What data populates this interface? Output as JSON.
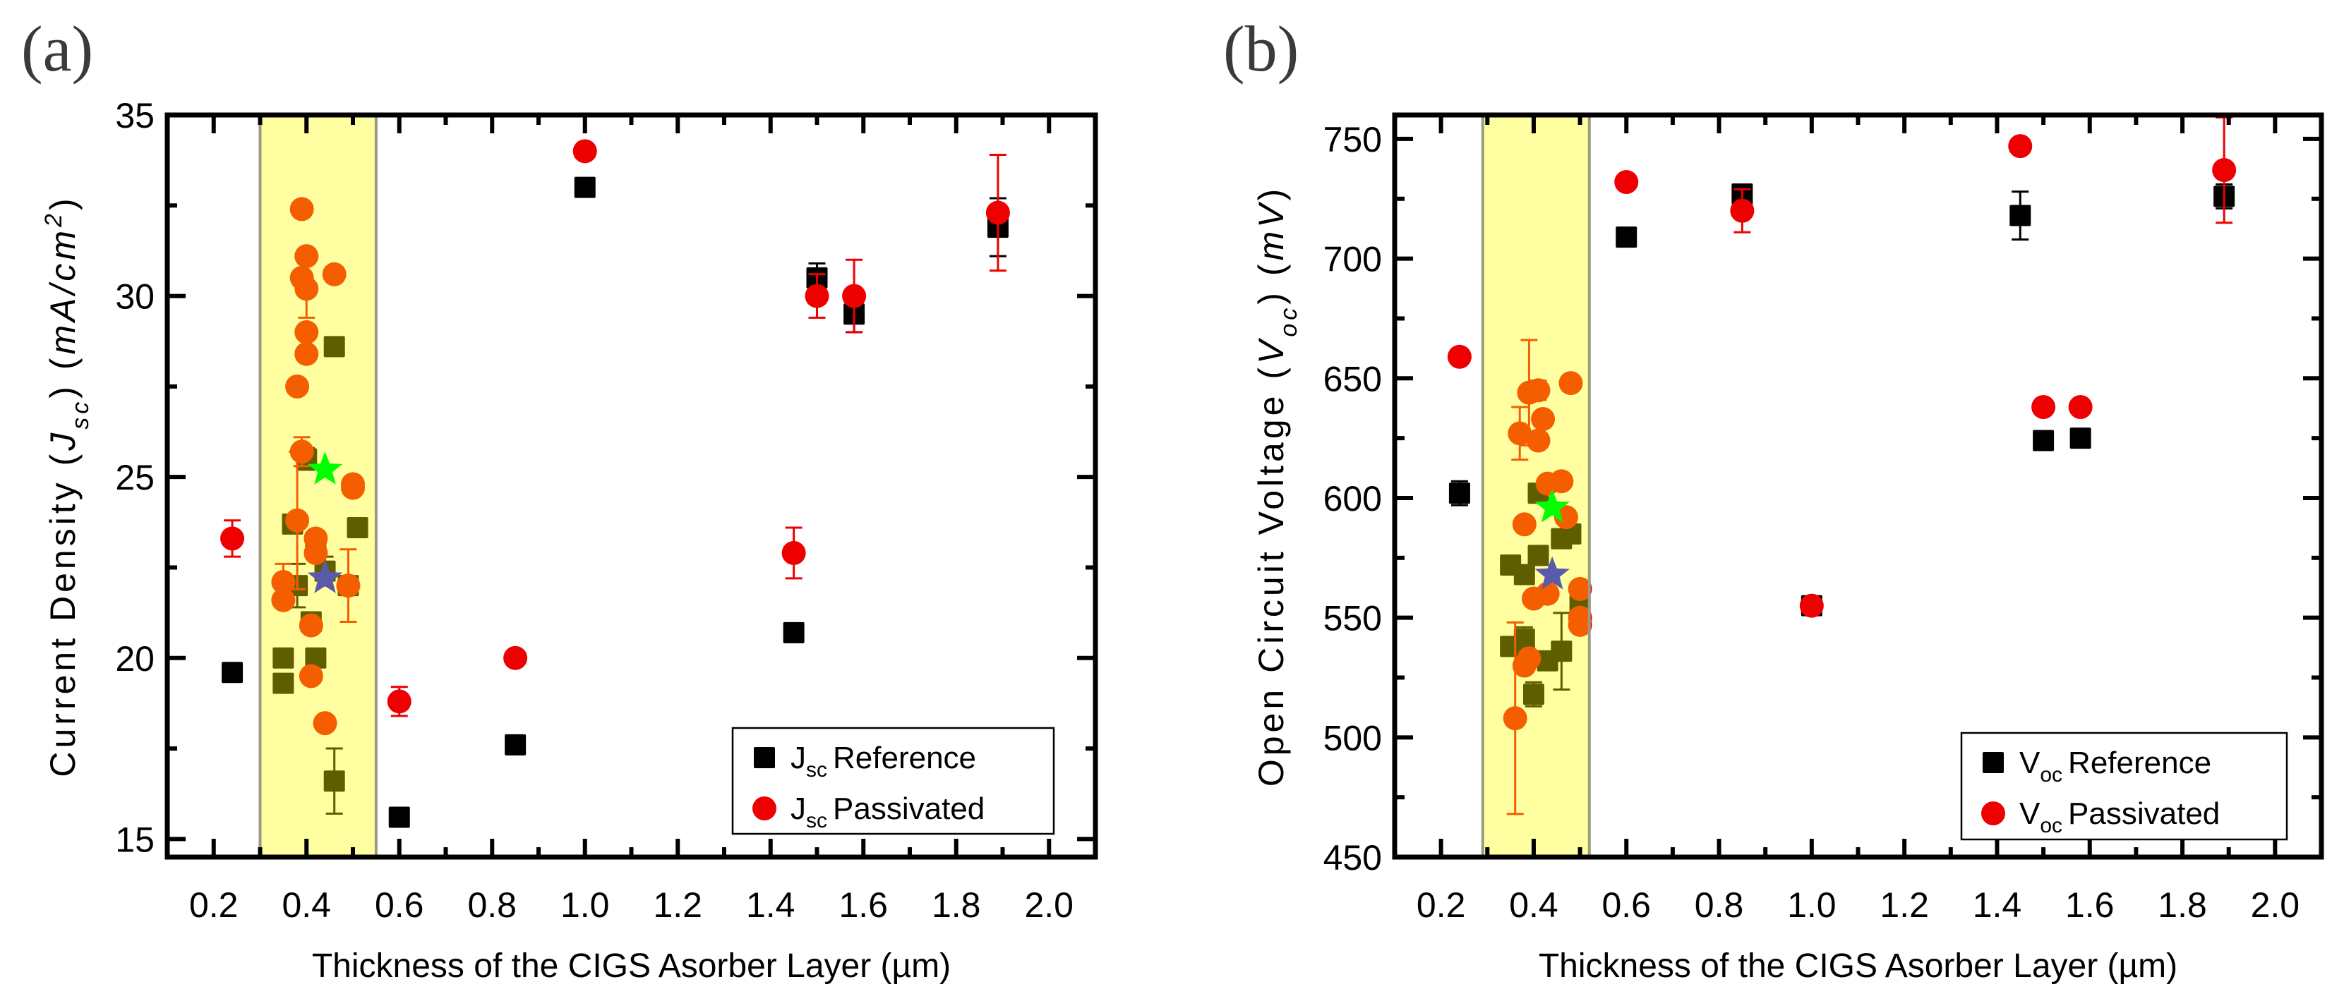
{
  "colors": {
    "reference": "#000000",
    "passivated": "#ee0000",
    "highlight": "#ffff00",
    "highlight_border": "#9a9a80",
    "star_green": "#00ff00",
    "star_blue": "#5a5aaa"
  },
  "chart_data": [
    {
      "type": "scatter",
      "panel_label": "(a)",
      "xlabel": "Thickness of the CIGS Asorber Layer (µm)",
      "ylabel_parts": [
        {
          "t": "Current Density (",
          "style": "normal"
        },
        {
          "t": "J",
          "style": "italic"
        },
        {
          "t": "sc",
          "style": "sub"
        },
        {
          "t": ") (",
          "style": "normal"
        },
        {
          "t": "mA/cm",
          "style": "italic"
        },
        {
          "t": "2",
          "style": "sup"
        },
        {
          "t": ")",
          "style": "normal"
        }
      ],
      "xlim": [
        0.1,
        2.1
      ],
      "ylim": [
        14.5,
        35
      ],
      "xticks": [
        0.2,
        0.4,
        0.6,
        0.8,
        1.0,
        1.2,
        1.4,
        1.6,
        1.8,
        2.0
      ],
      "xtick_labels": [
        "0.2",
        "0.4",
        "0.6",
        "0.8",
        "1.0",
        "1.2",
        "1.4",
        "1.6",
        "1.8",
        "2.0"
      ],
      "xminor": 0.1,
      "yticks": [
        15,
        20,
        25,
        30,
        35
      ],
      "ytick_labels": [
        "15",
        "20",
        "25",
        "30",
        "35"
      ],
      "yminor": 2.5,
      "grid": false,
      "highlight_range": [
        0.3,
        0.55
      ],
      "legend": {
        "position": "bottom-right",
        "entries": [
          {
            "symbol": "J",
            "sub": "sc",
            "text": "Reference",
            "marker": "square",
            "color_key": "reference"
          },
          {
            "symbol": "J",
            "sub": "sc",
            "text": "Passivated",
            "marker": "circle",
            "color_key": "passivated"
          }
        ]
      },
      "series": [
        {
          "legend_index": 0,
          "marker": "square",
          "color_key": "reference",
          "points": [
            [
              0.24,
              19.6,
              0
            ],
            [
              0.6,
              15.6,
              0
            ],
            [
              0.85,
              17.6,
              0
            ],
            [
              1.0,
              33.0,
              0
            ],
            [
              1.45,
              20.7,
              0
            ],
            [
              1.5,
              30.5,
              0.4
            ],
            [
              1.58,
              29.5,
              0.5
            ],
            [
              1.89,
              31.9,
              0.8
            ],
            [
              0.46,
              28.6,
              0
            ],
            [
              0.4,
              25.5,
              0.3
            ],
            [
              0.37,
              23.7,
              0
            ],
            [
              0.42,
              23.2,
              0
            ],
            [
              0.51,
              23.6,
              0
            ],
            [
              0.38,
              22.0,
              0.6
            ],
            [
              0.44,
              22.4,
              0.4
            ],
            [
              0.49,
              22.0,
              0
            ],
            [
              0.41,
              21.0,
              0
            ],
            [
              0.35,
              20.0,
              0
            ],
            [
              0.42,
              20.0,
              0
            ],
            [
              0.35,
              19.3,
              0.2
            ],
            [
              0.46,
              16.6,
              0.9
            ]
          ]
        },
        {
          "legend_index": 1,
          "marker": "circle",
          "color_key": "passivated",
          "points": [
            [
              0.24,
              23.3,
              0.5
            ],
            [
              0.6,
              18.8,
              0.4
            ],
            [
              0.85,
              20.0,
              0
            ],
            [
              1.0,
              34.0,
              0
            ],
            [
              1.45,
              22.9,
              0.7
            ],
            [
              1.5,
              30.0,
              0.6
            ],
            [
              1.58,
              30.0,
              1.0
            ],
            [
              1.89,
              32.3,
              1.6
            ],
            [
              0.39,
              32.4,
              0
            ],
            [
              0.4,
              31.1,
              0
            ],
            [
              0.39,
              30.5,
              0
            ],
            [
              0.4,
              30.2,
              0.8
            ],
            [
              0.46,
              30.6,
              0
            ],
            [
              0.4,
              29.0,
              0
            ],
            [
              0.4,
              28.4,
              0
            ],
            [
              0.38,
              27.5,
              0
            ],
            [
              0.39,
              25.7,
              0.4
            ],
            [
              0.5,
              24.7,
              0
            ],
            [
              0.5,
              24.8,
              0
            ],
            [
              0.38,
              23.8,
              1.9
            ],
            [
              0.42,
              23.3,
              0
            ],
            [
              0.42,
              22.9,
              0
            ],
            [
              0.35,
              22.1,
              0.5
            ],
            [
              0.35,
              21.6,
              0
            ],
            [
              0.49,
              22.0,
              1.0
            ],
            [
              0.41,
              20.9,
              0
            ],
            [
              0.41,
              19.5,
              0
            ],
            [
              0.44,
              18.2,
              0
            ]
          ]
        }
      ],
      "stars": [
        {
          "color_key": "star_green",
          "x": 0.44,
          "y": 25.2
        },
        {
          "color_key": "star_blue",
          "x": 0.44,
          "y": 22.2
        }
      ]
    },
    {
      "type": "scatter",
      "panel_label": "(b)",
      "xlabel": "Thickness of the CIGS Asorber Layer (µm)",
      "ylabel_parts": [
        {
          "t": "Open Circuit Voltage (",
          "style": "normal"
        },
        {
          "t": "V",
          "style": "italic"
        },
        {
          "t": "oc",
          "style": "sub"
        },
        {
          "t": ") (",
          "style": "normal"
        },
        {
          "t": "mV",
          "style": "italic"
        },
        {
          "t": ")",
          "style": "normal"
        }
      ],
      "xlim": [
        0.1,
        2.1
      ],
      "ylim": [
        450,
        760
      ],
      "xticks": [
        0.2,
        0.4,
        0.6,
        0.8,
        1.0,
        1.2,
        1.4,
        1.6,
        1.8,
        2.0
      ],
      "xtick_labels": [
        "0.2",
        "0.4",
        "0.6",
        "0.8",
        "1.0",
        "1.2",
        "1.4",
        "1.6",
        "1.8",
        "2.0"
      ],
      "xminor": 0.1,
      "yticks": [
        450,
        500,
        550,
        600,
        650,
        700,
        750
      ],
      "ytick_labels": [
        "450",
        "500",
        "550",
        "600",
        "650",
        "700",
        "750"
      ],
      "yminor": 25,
      "grid": false,
      "highlight_range": [
        0.29,
        0.52
      ],
      "legend": {
        "position": "bottom-right",
        "entries": [
          {
            "symbol": "V",
            "sub": "oc",
            "text": "Reference",
            "marker": "square",
            "color_key": "reference"
          },
          {
            "symbol": "V",
            "sub": "oc",
            "text": "Passivated",
            "marker": "circle",
            "color_key": "passivated"
          }
        ]
      },
      "series": [
        {
          "legend_index": 0,
          "marker": "square",
          "color_key": "reference",
          "points": [
            [
              0.24,
              602,
              5
            ],
            [
              0.6,
              709,
              0
            ],
            [
              0.85,
              727,
              3
            ],
            [
              1.0,
              555,
              0
            ],
            [
              1.45,
              718,
              10
            ],
            [
              1.5,
              624,
              0
            ],
            [
              1.58,
              625,
              3
            ],
            [
              1.89,
              726,
              5
            ],
            [
              0.41,
              602,
              0
            ],
            [
              0.35,
              572,
              0
            ],
            [
              0.38,
              568,
              0
            ],
            [
              0.41,
              576,
              0
            ],
            [
              0.46,
              583,
              0
            ],
            [
              0.48,
              585,
              0
            ],
            [
              0.35,
              538,
              0
            ],
            [
              0.38,
              541,
              5
            ],
            [
              0.43,
              532,
              0
            ],
            [
              0.46,
              536,
              16
            ],
            [
              0.4,
              518,
              5
            ],
            [
              0.5,
              555,
              0
            ]
          ]
        },
        {
          "legend_index": 1,
          "marker": "circle",
          "color_key": "passivated",
          "points": [
            [
              0.24,
              659,
              0
            ],
            [
              0.6,
              732,
              0
            ],
            [
              0.85,
              720,
              9
            ],
            [
              1.0,
              555,
              0
            ],
            [
              1.45,
              747,
              0
            ],
            [
              1.5,
              638,
              0
            ],
            [
              1.58,
              638,
              0
            ],
            [
              1.89,
              737,
              22
            ],
            [
              0.37,
              627,
              11
            ],
            [
              0.39,
              644,
              22
            ],
            [
              0.41,
              645,
              4
            ],
            [
              0.42,
              633,
              0
            ],
            [
              0.41,
              624,
              0
            ],
            [
              0.48,
              648,
              0
            ],
            [
              0.43,
              606,
              0
            ],
            [
              0.46,
              607,
              0
            ],
            [
              0.38,
              589,
              0
            ],
            [
              0.47,
              592,
              0
            ],
            [
              0.4,
              558,
              0
            ],
            [
              0.43,
              560,
              0
            ],
            [
              0.5,
              562,
              0
            ],
            [
              0.5,
              550,
              0
            ],
            [
              0.5,
              547,
              0
            ],
            [
              0.39,
              533,
              0
            ],
            [
              0.38,
              530,
              0
            ],
            [
              0.36,
              508,
              40
            ]
          ]
        }
      ],
      "stars": [
        {
          "color_key": "star_green",
          "x": 0.44,
          "y": 596
        },
        {
          "color_key": "star_blue",
          "x": 0.44,
          "y": 568
        }
      ]
    }
  ]
}
